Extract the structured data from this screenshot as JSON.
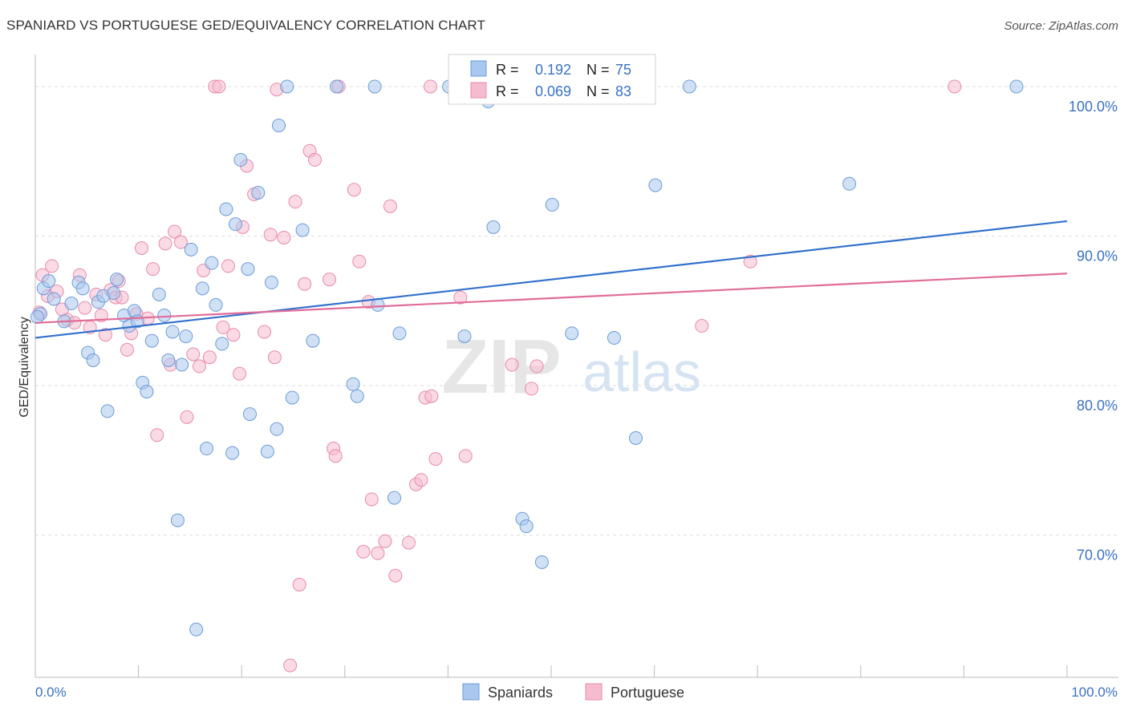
{
  "header": {
    "title": "SPANIARD VS PORTUGUESE GED/EQUIVALENCY CORRELATION CHART",
    "source": "Source: ZipAtlas.com"
  },
  "watermark": {
    "zip": "ZIP",
    "atlas": "atlas"
  },
  "legend_box": {
    "rows": [
      {
        "r_label": "R =",
        "r_value": "0.192",
        "n_label": "N =",
        "n_value": "75"
      },
      {
        "r_label": "R =",
        "r_value": "0.069",
        "n_label": "N =",
        "n_value": "83"
      }
    ]
  },
  "colors": {
    "spaniards_fill": "#a9c8ef",
    "spaniards_stroke": "#6b9bd8",
    "spaniards_line": "#3070cc",
    "portuguese_fill": "#f5bcd0",
    "portuguese_stroke": "#e88aaa",
    "portuguese_line": "#e06c98",
    "value_text": "#3a72c4",
    "grid": "#dcdcdc"
  },
  "chart_data": {
    "type": "scatter",
    "title": "SPANIARD VS PORTUGUESE GED/EQUIVALENCY CORRELATION CHART",
    "xlabel": "",
    "ylabel": "GED/Equivalency",
    "xlim": [
      0,
      100
    ],
    "ylim": [
      60.5,
      101.5
    ],
    "x_tick_labels": [
      "0.0%",
      "100.0%"
    ],
    "y_ticks": [
      70,
      80,
      90,
      100
    ],
    "y_tick_labels": [
      "70.0%",
      "80.0%",
      "90.0%",
      "100.0%"
    ],
    "grid": true,
    "legend_position": "top-center",
    "bottom_legend": [
      "Spaniards",
      "Portuguese"
    ],
    "series": [
      {
        "name": "Spaniards",
        "r": 0.192,
        "n": 75,
        "trend": {
          "x": [
            0,
            100
          ],
          "y": [
            83.2,
            91.0
          ]
        },
        "points": [
          [
            0.5,
            84.8
          ],
          [
            0.8,
            86.5
          ],
          [
            1.3,
            87.0
          ],
          [
            1.8,
            85.8
          ],
          [
            2.8,
            84.3
          ],
          [
            3.5,
            85.5
          ],
          [
            4.2,
            86.9
          ],
          [
            4.6,
            86.5
          ],
          [
            5.1,
            82.2
          ],
          [
            5.6,
            81.7
          ],
          [
            6.1,
            85.6
          ],
          [
            6.6,
            86.0
          ],
          [
            7.0,
            78.3
          ],
          [
            7.6,
            86.2
          ],
          [
            7.9,
            87.1
          ],
          [
            8.6,
            84.7
          ],
          [
            9.1,
            84.0
          ],
          [
            9.6,
            85.0
          ],
          [
            9.9,
            84.3
          ],
          [
            10.4,
            80.2
          ],
          [
            10.8,
            79.6
          ],
          [
            11.3,
            83.0
          ],
          [
            12.0,
            86.1
          ],
          [
            12.5,
            84.7
          ],
          [
            12.9,
            81.7
          ],
          [
            13.3,
            83.6
          ],
          [
            13.8,
            71.0
          ],
          [
            14.2,
            81.4
          ],
          [
            14.6,
            83.3
          ],
          [
            15.1,
            89.1
          ],
          [
            15.6,
            63.7
          ],
          [
            16.2,
            86.5
          ],
          [
            16.6,
            75.8
          ],
          [
            17.1,
            88.2
          ],
          [
            17.5,
            85.4
          ],
          [
            18.1,
            82.8
          ],
          [
            18.5,
            91.8
          ],
          [
            19.1,
            75.5
          ],
          [
            19.4,
            90.8
          ],
          [
            19.9,
            95.1
          ],
          [
            20.6,
            87.8
          ],
          [
            20.8,
            78.1
          ],
          [
            21.6,
            92.9
          ],
          [
            22.5,
            75.6
          ],
          [
            22.9,
            86.9
          ],
          [
            23.4,
            77.1
          ],
          [
            23.6,
            97.4
          ],
          [
            24.4,
            100.0
          ],
          [
            24.9,
            79.2
          ],
          [
            25.9,
            90.4
          ],
          [
            26.9,
            83.0
          ],
          [
            29.2,
            100.0
          ],
          [
            30.8,
            80.1
          ],
          [
            31.2,
            79.3
          ],
          [
            32.9,
            100.0
          ],
          [
            33.2,
            85.4
          ],
          [
            34.8,
            72.5
          ],
          [
            35.3,
            83.5
          ],
          [
            40.1,
            100.0
          ],
          [
            41.6,
            83.3
          ],
          [
            43.9,
            99.0
          ],
          [
            44.4,
            90.6
          ],
          [
            47.2,
            71.1
          ],
          [
            47.6,
            70.6
          ],
          [
            49.1,
            68.2
          ],
          [
            49.5,
            100.0
          ],
          [
            50.1,
            92.1
          ],
          [
            52.0,
            83.5
          ],
          [
            56.1,
            83.2
          ],
          [
            58.2,
            76.5
          ],
          [
            60.1,
            93.4
          ],
          [
            63.4,
            100.0
          ],
          [
            78.9,
            93.5
          ],
          [
            95.1,
            100.0
          ],
          [
            0.2,
            84.6
          ]
        ]
      },
      {
        "name": "Portuguese",
        "r": 0.069,
        "n": 83,
        "trend": {
          "x": [
            0,
            100
          ],
          "y": [
            84.2,
            87.5
          ]
        },
        "points": [
          [
            0.4,
            84.9
          ],
          [
            0.7,
            87.4
          ],
          [
            1.2,
            86.0
          ],
          [
            1.6,
            88.0
          ],
          [
            2.1,
            86.3
          ],
          [
            2.6,
            85.1
          ],
          [
            3.1,
            84.4
          ],
          [
            3.8,
            84.2
          ],
          [
            4.3,
            87.4
          ],
          [
            4.8,
            85.2
          ],
          [
            5.3,
            83.9
          ],
          [
            5.9,
            86.1
          ],
          [
            6.4,
            84.7
          ],
          [
            6.8,
            83.4
          ],
          [
            7.3,
            86.4
          ],
          [
            7.8,
            85.9
          ],
          [
            8.1,
            87.0
          ],
          [
            8.4,
            85.9
          ],
          [
            8.9,
            82.4
          ],
          [
            9.3,
            83.5
          ],
          [
            9.8,
            84.8
          ],
          [
            10.3,
            89.2
          ],
          [
            10.9,
            84.5
          ],
          [
            11.4,
            87.8
          ],
          [
            11.8,
            76.7
          ],
          [
            12.6,
            89.5
          ],
          [
            13.1,
            81.4
          ],
          [
            13.5,
            90.3
          ],
          [
            14.1,
            89.6
          ],
          [
            14.7,
            77.9
          ],
          [
            15.3,
            82.1
          ],
          [
            15.9,
            81.3
          ],
          [
            16.3,
            87.7
          ],
          [
            16.9,
            81.9
          ],
          [
            17.4,
            100.0
          ],
          [
            17.8,
            100.0
          ],
          [
            18.2,
            83.9
          ],
          [
            18.7,
            88.0
          ],
          [
            19.2,
            83.4
          ],
          [
            19.8,
            80.8
          ],
          [
            20.1,
            90.6
          ],
          [
            20.5,
            94.7
          ],
          [
            21.2,
            92.8
          ],
          [
            22.2,
            83.6
          ],
          [
            22.8,
            90.1
          ],
          [
            23.2,
            81.9
          ],
          [
            23.4,
            99.8
          ],
          [
            24.1,
            89.9
          ],
          [
            24.7,
            61.3
          ],
          [
            25.2,
            92.3
          ],
          [
            25.6,
            66.7
          ],
          [
            26.1,
            86.8
          ],
          [
            26.6,
            95.7
          ],
          [
            27.1,
            95.1
          ],
          [
            28.5,
            87.1
          ],
          [
            28.9,
            75.8
          ],
          [
            29.1,
            75.3
          ],
          [
            29.4,
            100.0
          ],
          [
            30.9,
            93.1
          ],
          [
            31.4,
            88.3
          ],
          [
            31.8,
            68.9
          ],
          [
            32.3,
            85.6
          ],
          [
            32.6,
            72.4
          ],
          [
            33.2,
            68.8
          ],
          [
            33.9,
            69.6
          ],
          [
            34.4,
            92.0
          ],
          [
            34.9,
            67.3
          ],
          [
            36.2,
            69.5
          ],
          [
            36.9,
            73.4
          ],
          [
            37.4,
            73.7
          ],
          [
            37.8,
            79.2
          ],
          [
            38.3,
            100.0
          ],
          [
            38.4,
            79.3
          ],
          [
            38.8,
            75.1
          ],
          [
            41.2,
            85.9
          ],
          [
            41.7,
            75.3
          ],
          [
            43.6,
            100.0
          ],
          [
            46.2,
            81.4
          ],
          [
            48.1,
            79.8
          ],
          [
            48.6,
            81.3
          ],
          [
            64.6,
            84.0
          ],
          [
            69.3,
            88.3
          ],
          [
            89.1,
            100.0
          ]
        ]
      }
    ]
  }
}
